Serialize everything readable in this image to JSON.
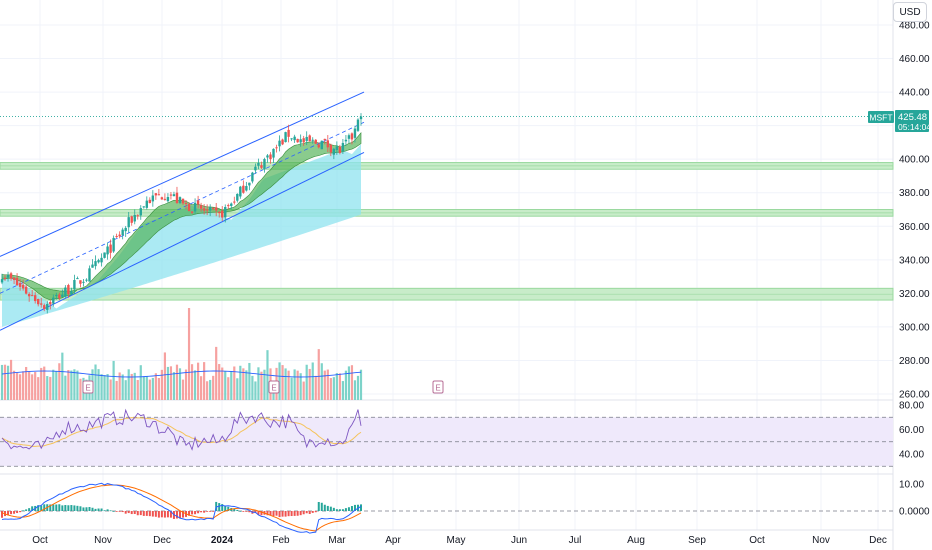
{
  "header": {
    "currency_label": "USD"
  },
  "price_tags": {
    "symbol": "MSFT",
    "price": "425.48",
    "countdown": "05:14:04"
  },
  "colors": {
    "up": "#26a69a",
    "down": "#ef5350",
    "grid": "#f0f3fa",
    "channel": "#2962ff",
    "cloud": "#8fe3ef",
    "ribbon": "#4caf50",
    "rsi_line": "#7e57c2",
    "rsi_ma": "#f5c35b",
    "rsi_band": "#efe9fb",
    "macd_line": "#2962ff",
    "signal_line": "#ff6d00",
    "zone": "#9ad99f",
    "earnings_marker": "#b76e96"
  },
  "chart_data": [
    {
      "type": "candlestick",
      "ylim": [
        255,
        490
      ],
      "yticks": [
        "260.00",
        "280.00",
        "300.00",
        "320.00",
        "340.00",
        "360.00",
        "380.00",
        "400.00",
        "420.00",
        "440.00",
        "460.00",
        "480.00"
      ],
      "xticks": [
        "Oct",
        "Nov",
        "Dec",
        "2024",
        "Feb",
        "Mar",
        "Apr",
        "May",
        "Jun",
        "Jul",
        "Aug",
        "Sep",
        "Oct",
        "Nov",
        "Dec"
      ],
      "last_price": 425.48,
      "support_zones": [
        [
          394,
          398
        ],
        [
          366,
          370
        ],
        [
          316,
          323
        ]
      ],
      "channel": {
        "upper": [
          [
            0,
            342
          ],
          [
            120,
            440
          ]
        ],
        "lower": [
          [
            0,
            298
          ],
          [
            120,
            404
          ]
        ]
      },
      "earnings_markers": [
        "E",
        "E",
        "E"
      ]
    },
    {
      "type": "line",
      "indicator": "RSI",
      "ylim": [
        26,
        84
      ],
      "yticks": [
        "40.00",
        "60.00",
        "80.00"
      ],
      "levels": [
        70,
        50,
        30
      ]
    },
    {
      "type": "line",
      "indicator": "MACD",
      "ylim": [
        -5,
        16
      ],
      "yticks": [
        "0.0000",
        "10.00"
      ]
    }
  ]
}
